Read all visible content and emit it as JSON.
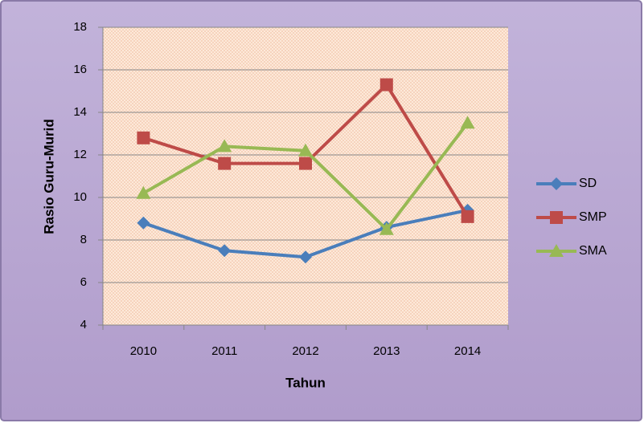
{
  "chart_data": {
    "type": "line",
    "x_label": "Tahun",
    "y_label": "Rasio Guru-Murid",
    "categories": [
      "2010",
      "2011",
      "2012",
      "2013",
      "2014"
    ],
    "series": [
      {
        "name": "SD",
        "color": "#4a7ebb",
        "marker": "diamond",
        "values": [
          8.8,
          7.5,
          7.2,
          8.6,
          9.4
        ]
      },
      {
        "name": "SMP",
        "color": "#be4b48",
        "marker": "square",
        "values": [
          12.8,
          11.6,
          11.6,
          15.3,
          9.1
        ]
      },
      {
        "name": "SMA",
        "color": "#98b954",
        "marker": "triangle",
        "values": [
          10.2,
          12.4,
          12.2,
          8.5,
          13.5
        ]
      }
    ],
    "ylim": [
      4,
      18
    ],
    "yticks": [
      4,
      6,
      8,
      10,
      12,
      14,
      16,
      18
    ],
    "grid": true,
    "legend": "right"
  }
}
